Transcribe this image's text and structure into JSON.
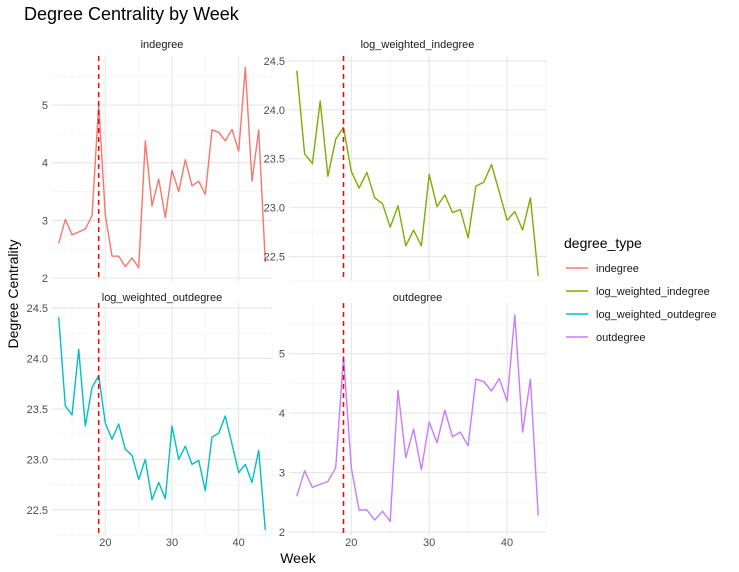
{
  "chart_data": {
    "type": "line",
    "title": "Degree Centrality by Week",
    "xlabel": "Week",
    "ylabel": "Degree Centrality",
    "vline": {
      "x": 19,
      "color": "#ff0000",
      "style": "dashed"
    },
    "legend": {
      "title": "degree_type",
      "position": "right",
      "entries": [
        {
          "name": "indegree",
          "color": "#F8766D"
        },
        {
          "name": "log_weighted_indegree",
          "color": "#7CAE00"
        },
        {
          "name": "log_weighted_outdegree",
          "color": "#00BFC4"
        },
        {
          "name": "outdegree",
          "color": "#C77CFF"
        }
      ]
    },
    "x": [
      13,
      14,
      15,
      16,
      17,
      18,
      19,
      20,
      21,
      22,
      23,
      24,
      25,
      26,
      27,
      28,
      29,
      30,
      31,
      32,
      33,
      34,
      35,
      36,
      37,
      38,
      39,
      40,
      41,
      42,
      43,
      44
    ],
    "xlim": [
      12,
      45
    ],
    "x_ticks": [
      20,
      30,
      40
    ],
    "panels": [
      {
        "name": "indegree",
        "color": "#F8766D",
        "ylim": [
          1.95,
          5.85
        ],
        "y_ticks": [
          2,
          3,
          4,
          5
        ],
        "values": [
          2.6,
          3.02,
          2.75,
          2.8,
          2.85,
          3.08,
          5.0,
          3.1,
          2.38,
          2.38,
          2.2,
          2.35,
          2.18,
          4.38,
          3.25,
          3.72,
          3.05,
          3.87,
          3.5,
          4.05,
          3.6,
          3.68,
          3.45,
          4.57,
          4.53,
          4.38,
          4.58,
          4.2,
          5.65,
          3.68,
          4.57,
          2.28
        ]
      },
      {
        "name": "log_weighted_indegree",
        "color": "#7CAE00",
        "ylim": [
          22.25,
          24.55
        ],
        "y_ticks": [
          22.5,
          23.0,
          23.5,
          24.0,
          24.5
        ],
        "values": [
          24.4,
          23.55,
          23.45,
          24.09,
          23.32,
          23.7,
          23.82,
          23.37,
          23.2,
          23.36,
          23.1,
          23.04,
          22.8,
          23.02,
          22.61,
          22.77,
          22.61,
          23.34,
          23.01,
          23.13,
          22.95,
          22.98,
          22.69,
          23.22,
          23.26,
          23.44,
          23.16,
          22.87,
          22.96,
          22.77,
          23.1,
          22.3
        ]
      },
      {
        "name": "log_weighted_outdegree",
        "color": "#00BFC4",
        "ylim": [
          22.25,
          24.55
        ],
        "y_ticks": [
          22.5,
          23.0,
          23.5,
          24.0,
          24.5
        ],
        "values": [
          24.41,
          23.53,
          23.44,
          24.09,
          23.33,
          23.71,
          23.83,
          23.36,
          23.2,
          23.35,
          23.1,
          23.04,
          22.8,
          23.0,
          22.6,
          22.77,
          22.61,
          23.33,
          23.0,
          23.13,
          22.95,
          22.99,
          22.69,
          23.22,
          23.26,
          23.43,
          23.15,
          22.87,
          22.95,
          22.77,
          23.09,
          22.3
        ]
      },
      {
        "name": "outdegree",
        "color": "#C77CFF",
        "ylim": [
          1.95,
          5.85
        ],
        "y_ticks": [
          2,
          3,
          4,
          5
        ],
        "values": [
          2.6,
          3.03,
          2.75,
          2.8,
          2.85,
          3.08,
          4.95,
          3.08,
          2.37,
          2.37,
          2.2,
          2.35,
          2.18,
          4.38,
          3.25,
          3.73,
          3.05,
          3.85,
          3.5,
          4.05,
          3.6,
          3.68,
          3.45,
          4.57,
          4.53,
          4.37,
          4.58,
          4.2,
          5.65,
          3.68,
          4.57,
          2.28
        ]
      }
    ]
  }
}
